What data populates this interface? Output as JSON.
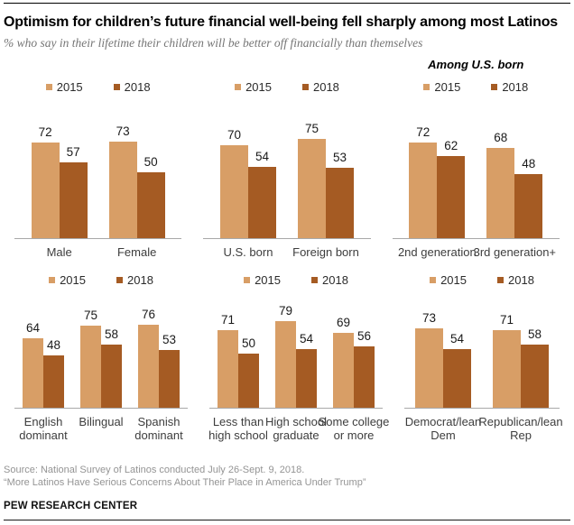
{
  "page": {
    "title": "Optimism for children’s future financial well-being fell sharply among most Latinos",
    "subtitle": "% who say in their lifetime their children will be better off financially than themselves",
    "source_line1": "Source: National Survey of Latinos conducted July 26-Sept. 9, 2018.",
    "source_line2": "“More Latinos Have Serious Concerns About Their Place in America Under Trump”",
    "brand": "PEW RESEARCH CENTER"
  },
  "legend": {
    "series1": "2015",
    "series2": "2018"
  },
  "annotations": {
    "among_us_born": "Among U.S. born"
  },
  "colors": {
    "series1": "#d89e66",
    "series2": "#a55b23",
    "axis": "#a8a8a8"
  },
  "chart_data": [
    {
      "type": "bar",
      "group": "gender",
      "row": 1,
      "ylim": [
        0,
        100
      ],
      "categories": [
        "Male",
        "Female"
      ],
      "label_lines": [
        [
          "Male"
        ],
        [
          "Female"
        ]
      ],
      "series": [
        {
          "name": "2015",
          "values": [
            72,
            73
          ]
        },
        {
          "name": "2018",
          "values": [
            57,
            50
          ]
        }
      ]
    },
    {
      "type": "bar",
      "group": "nativity",
      "row": 1,
      "ylim": [
        0,
        100
      ],
      "categories": [
        "U.S. born",
        "Foreign born"
      ],
      "label_lines": [
        [
          "U.S. born"
        ],
        [
          "Foreign born"
        ]
      ],
      "series": [
        {
          "name": "2015",
          "values": [
            70,
            75
          ]
        },
        {
          "name": "2018",
          "values": [
            54,
            53
          ]
        }
      ]
    },
    {
      "type": "bar",
      "group": "generation",
      "row": 1,
      "ylim": [
        0,
        100
      ],
      "header": "Among U.S. born",
      "categories": [
        "2nd generation",
        "3rd generation+"
      ],
      "label_lines": [
        [
          "2nd generation"
        ],
        [
          "3rd generation+"
        ]
      ],
      "series": [
        {
          "name": "2015",
          "values": [
            72,
            68
          ]
        },
        {
          "name": "2018",
          "values": [
            62,
            48
          ]
        }
      ]
    },
    {
      "type": "bar",
      "group": "language",
      "row": 2,
      "ylim": [
        0,
        100
      ],
      "categories": [
        "English dominant",
        "Bilingual",
        "Spanish dominant"
      ],
      "label_lines": [
        [
          "English",
          "dominant"
        ],
        [
          "Bilingual"
        ],
        [
          "Spanish",
          "dominant"
        ]
      ],
      "series": [
        {
          "name": "2015",
          "values": [
            64,
            75,
            76
          ]
        },
        {
          "name": "2018",
          "values": [
            48,
            58,
            53
          ]
        }
      ]
    },
    {
      "type": "bar",
      "group": "education",
      "row": 2,
      "ylim": [
        0,
        100
      ],
      "categories": [
        "Less than high school",
        "High school graduate",
        "Some college or more"
      ],
      "label_lines": [
        [
          "Less than",
          "high school"
        ],
        [
          "High school",
          "graduate"
        ],
        [
          "Some college",
          "or more"
        ]
      ],
      "series": [
        {
          "name": "2015",
          "values": [
            71,
            79,
            69
          ]
        },
        {
          "name": "2018",
          "values": [
            50,
            54,
            56
          ]
        }
      ]
    },
    {
      "type": "bar",
      "group": "party",
      "row": 2,
      "ylim": [
        0,
        100
      ],
      "categories": [
        "Democrat/lean Dem",
        "Republican/lean Rep"
      ],
      "label_lines": [
        [
          "Democrat/lean",
          "Dem"
        ],
        [
          "Republican/lean",
          "Rep"
        ]
      ],
      "series": [
        {
          "name": "2015",
          "values": [
            73,
            71
          ]
        },
        {
          "name": "2018",
          "values": [
            54,
            58
          ]
        }
      ]
    }
  ]
}
